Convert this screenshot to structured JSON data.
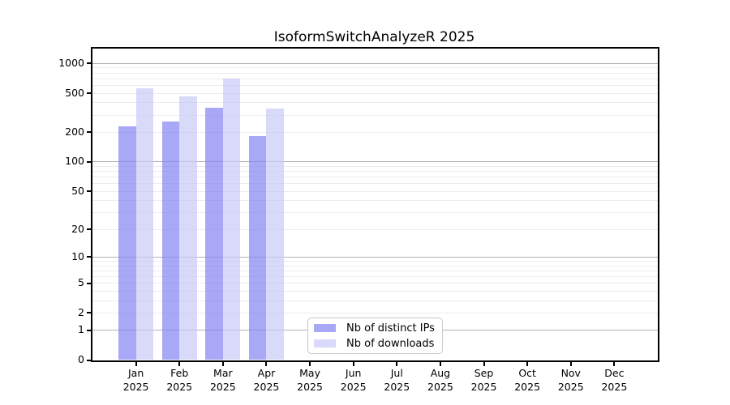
{
  "title": "IsoformSwitchAnalyzeR 2025",
  "legend": {
    "items": [
      {
        "label": "Nb of distinct IPs",
        "color": "rgba(131,131,242,0.7)"
      },
      {
        "label": "Nb of downloads",
        "color": "rgba(201,201,248,0.7)"
      }
    ],
    "position": "lower center-left inside plot"
  },
  "chart_data": {
    "type": "bar",
    "title": "IsoformSwitchAnalyzeR 2025",
    "categories": [
      "Jan 2025",
      "Feb 2025",
      "Mar 2025",
      "Apr 2025",
      "May 2025",
      "Jun 2025",
      "Jul 2025",
      "Aug 2025",
      "Sep 2025",
      "Oct 2025",
      "Nov 2025",
      "Dec 2025"
    ],
    "series": [
      {
        "name": "Nb of distinct IPs",
        "color": "rgba(131,131,242,0.7)",
        "values": [
          230,
          260,
          355,
          183,
          0,
          0,
          0,
          0,
          0,
          0,
          0,
          0
        ]
      },
      {
        "name": "Nb of downloads",
        "color": "rgba(201,201,248,0.7)",
        "values": [
          557,
          466,
          708,
          352,
          0,
          0,
          0,
          0,
          0,
          0,
          0,
          0
        ]
      }
    ],
    "xlabel": "",
    "ylabel": "",
    "yscale": "log1p",
    "y_ticks": [
      0,
      1,
      2,
      5,
      10,
      20,
      50,
      100,
      200,
      500,
      1000
    ],
    "ylim": [
      0,
      1400
    ],
    "grid": {
      "horizontal_major_at": [
        1,
        10,
        100,
        1000
      ],
      "horizontal_minor": "2-9 per decade",
      "major_color": "#b2b2b2",
      "minor_color": "#ececec"
    },
    "spines": "full black box",
    "legend_position": "lower center-left"
  }
}
